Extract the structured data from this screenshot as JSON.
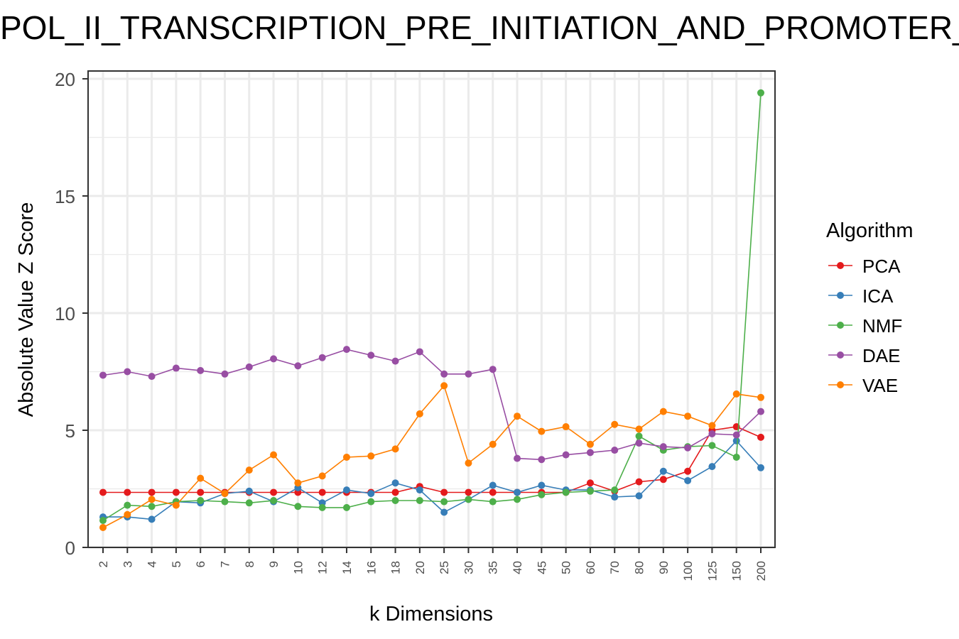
{
  "chart_data": {
    "type": "line",
    "title": "POL_II_TRANSCRIPTION_PRE_INITIATION_AND_PROMOTER_OPENING",
    "xlabel": "k Dimensions",
    "ylabel": "Absolute Value Z Score",
    "categories": [
      "2",
      "3",
      "4",
      "5",
      "6",
      "7",
      "8",
      "9",
      "10",
      "12",
      "14",
      "16",
      "18",
      "20",
      "25",
      "30",
      "35",
      "40",
      "45",
      "50",
      "60",
      "70",
      "80",
      "90",
      "100",
      "125",
      "150",
      "200"
    ],
    "ylim": [
      0,
      20
    ],
    "yticks": [
      "0",
      "5",
      "10",
      "15",
      "20"
    ],
    "grid": true,
    "legend": {
      "title": "Algorithm",
      "position": "right"
    },
    "series": [
      {
        "name": "PCA",
        "color": "#e41a1c",
        "values": [
          2.35,
          2.35,
          2.35,
          2.35,
          2.35,
          2.35,
          2.35,
          2.35,
          2.35,
          2.35,
          2.35,
          2.35,
          2.35,
          2.6,
          2.35,
          2.35,
          2.35,
          2.35,
          2.35,
          2.35,
          2.75,
          2.4,
          2.8,
          2.9,
          3.25,
          5.0,
          5.15,
          4.7
        ]
      },
      {
        "name": "ICA",
        "color": "#377eb8",
        "values": [
          1.3,
          1.3,
          1.2,
          1.95,
          1.9,
          2.3,
          2.4,
          1.95,
          2.55,
          1.9,
          2.45,
          2.3,
          2.75,
          2.45,
          1.5,
          2.05,
          2.65,
          2.35,
          2.65,
          2.45,
          2.45,
          2.15,
          2.2,
          3.25,
          2.85,
          3.45,
          4.55,
          3.4
        ]
      },
      {
        "name": "NMF",
        "color": "#4daf4a",
        "values": [
          1.15,
          1.8,
          1.75,
          1.95,
          2.0,
          1.95,
          1.9,
          2.0,
          1.75,
          1.7,
          1.7,
          1.95,
          2.0,
          2.0,
          1.95,
          2.05,
          1.95,
          2.05,
          2.25,
          2.35,
          2.4,
          2.45,
          4.75,
          4.15,
          4.3,
          4.35,
          3.85,
          19.4
        ]
      },
      {
        "name": "DAE",
        "color": "#984ea3",
        "values": [
          7.35,
          7.5,
          7.3,
          7.65,
          7.55,
          7.4,
          7.7,
          8.05,
          7.75,
          8.1,
          8.45,
          8.2,
          7.95,
          8.35,
          7.4,
          7.4,
          7.6,
          3.8,
          3.75,
          3.95,
          4.05,
          4.15,
          4.45,
          4.3,
          4.25,
          4.85,
          4.8,
          5.8
        ]
      },
      {
        "name": "VAE",
        "color": "#ff7f00",
        "values": [
          0.85,
          1.4,
          2.05,
          1.8,
          2.95,
          2.3,
          3.3,
          3.95,
          2.75,
          3.05,
          3.85,
          3.9,
          4.2,
          5.7,
          6.9,
          3.6,
          4.4,
          5.6,
          4.95,
          5.15,
          4.4,
          5.25,
          5.05,
          5.8,
          5.6,
          5.2,
          6.55,
          6.4
        ]
      }
    ]
  }
}
